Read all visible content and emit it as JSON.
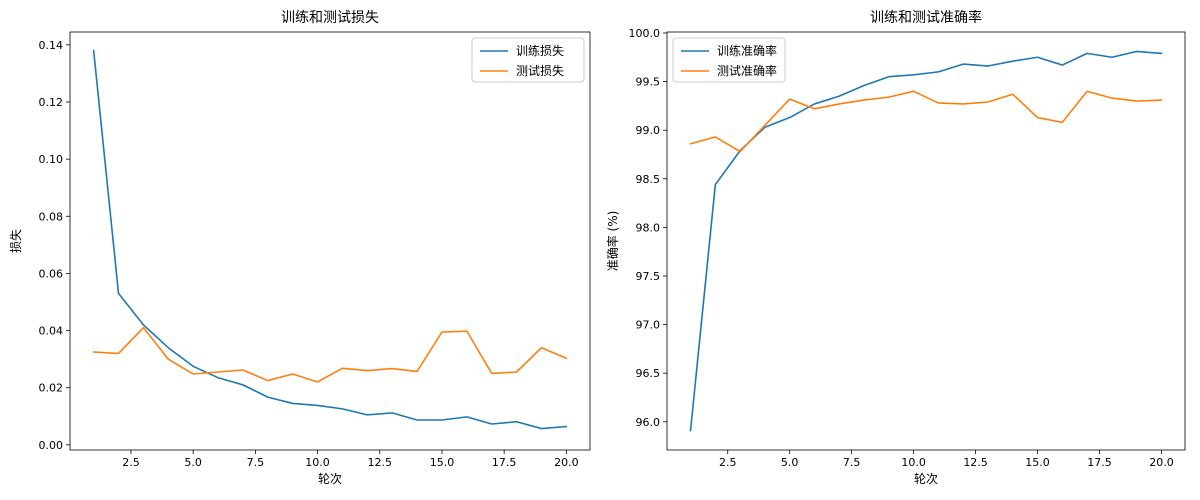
{
  "chart_data": [
    {
      "type": "line",
      "title": "训练和测试损失",
      "xlabel": "轮次",
      "ylabel": "损失",
      "xlim": [
        0.05,
        20.95
      ],
      "ylim": [
        -0.0018,
        0.1445
      ],
      "x_ticks": [
        2.5,
        5.0,
        7.5,
        10.0,
        12.5,
        15.0,
        17.5,
        20.0
      ],
      "x_tick_labels": [
        "2.5",
        "5.0",
        "7.5",
        "10.0",
        "12.5",
        "15.0",
        "17.5",
        "20.0"
      ],
      "y_ticks": [
        0.0,
        0.02,
        0.04,
        0.06,
        0.08,
        0.1,
        0.12,
        0.14
      ],
      "y_tick_labels": [
        "0.00",
        "0.02",
        "0.04",
        "0.06",
        "0.08",
        "0.10",
        "0.12",
        "0.14"
      ],
      "x": [
        1,
        2,
        3,
        4,
        5,
        6,
        7,
        8,
        9,
        10,
        11,
        12,
        13,
        14,
        15,
        16,
        17,
        18,
        19,
        20
      ],
      "grid": false,
      "legend_position": "top-right",
      "series": [
        {
          "name": "训练损失",
          "color": "#1f77b4",
          "values": [
            0.138,
            0.053,
            0.042,
            0.034,
            0.0275,
            0.0235,
            0.021,
            0.0167,
            0.0145,
            0.0138,
            0.0126,
            0.0105,
            0.0112,
            0.0087,
            0.0087,
            0.0098,
            0.0073,
            0.0081,
            0.0057,
            0.0064
          ]
        },
        {
          "name": "测试损失",
          "color": "#ff7f0e",
          "values": [
            0.0325,
            0.032,
            0.041,
            0.03,
            0.0248,
            0.0255,
            0.0262,
            0.0225,
            0.0248,
            0.022,
            0.0268,
            0.026,
            0.0267,
            0.0257,
            0.0395,
            0.0398,
            0.025,
            0.0255,
            0.034,
            0.0303
          ]
        }
      ]
    },
    {
      "type": "line",
      "title": "训练和测试准确率",
      "xlabel": "轮次",
      "ylabel": "准确率 (%)",
      "xlim": [
        0.05,
        20.95
      ],
      "ylim": [
        95.71,
        100.01
      ],
      "x_ticks": [
        2.5,
        5.0,
        7.5,
        10.0,
        12.5,
        15.0,
        17.5,
        20.0
      ],
      "x_tick_labels": [
        "2.5",
        "5.0",
        "7.5",
        "10.0",
        "12.5",
        "15.0",
        "17.5",
        "20.0"
      ],
      "y_ticks": [
        96.0,
        96.5,
        97.0,
        97.5,
        98.0,
        98.5,
        99.0,
        99.5,
        100.0
      ],
      "y_tick_labels": [
        "96.0",
        "96.5",
        "97.0",
        "97.5",
        "98.0",
        "98.5",
        "99.0",
        "99.5",
        "100.0"
      ],
      "x": [
        1,
        2,
        3,
        4,
        5,
        6,
        7,
        8,
        9,
        10,
        11,
        12,
        13,
        14,
        15,
        16,
        17,
        18,
        19,
        20
      ],
      "grid": false,
      "legend_position": "top-left",
      "series": [
        {
          "name": "训练准确率",
          "color": "#1f77b4",
          "values": [
            95.91,
            98.44,
            98.79,
            99.03,
            99.13,
            99.27,
            99.35,
            99.46,
            99.55,
            99.57,
            99.6,
            99.68,
            99.66,
            99.71,
            99.75,
            99.67,
            99.79,
            99.75,
            99.81,
            99.79
          ]
        },
        {
          "name": "测试准确率",
          "color": "#ff7f0e",
          "values": [
            98.86,
            98.93,
            98.78,
            99.05,
            99.32,
            99.22,
            99.27,
            99.31,
            99.34,
            99.4,
            99.28,
            99.27,
            99.29,
            99.37,
            99.13,
            99.08,
            99.4,
            99.33,
            99.3,
            99.31
          ]
        }
      ]
    }
  ]
}
